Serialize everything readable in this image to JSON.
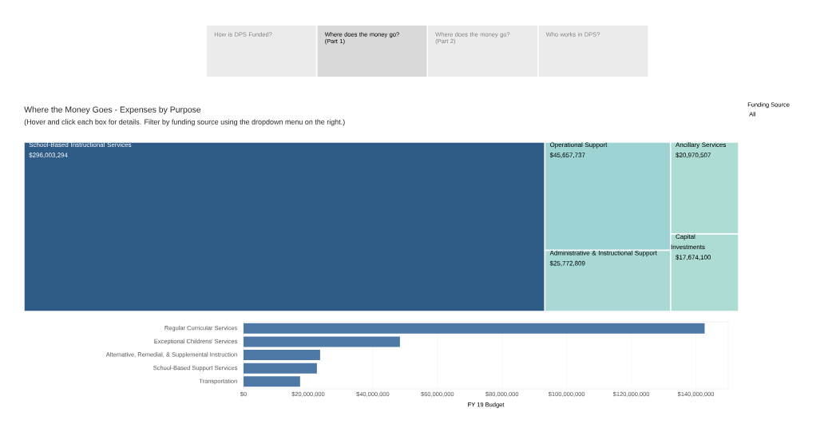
{
  "chart_data": [
    {
      "type": "other",
      "title": "Where the Money Goes - Expenses by Purpose",
      "subtitle": "(Hover and click each box for details. Filter by funding source using the dropdown menu on the right.)",
      "categories": [
        "School-Based Instructional Services",
        "Operational Support",
        "Administrative & Instructional Support",
        "Ancillary Services",
        "Capital Investments"
      ],
      "values": [
        296003294,
        45657737,
        25772809,
        20970507,
        17674100
      ],
      "value_labels": [
        "$296,003,294",
        "$45,657,737",
        "$25,772,809",
        "$20,970,507",
        "$17,674,100"
      ],
      "colors": [
        "#2e5c87",
        "#9dd3d2",
        "#a8d9d4",
        "#addcd4",
        "#addcd4"
      ],
      "annotations": [
        "How is DPS Funded?",
        "Where does the money go? (Part 1)",
        "Where does the money go? (Part 2)",
        "Who works in DPS?",
        "Funding Source",
        "All"
      ]
    },
    {
      "type": "bar",
      "orientation": "horizontal",
      "xlabel": "FY 19 Budget",
      "categories": [
        "Regular Curricular Services",
        "Exceptional Childrens' Services",
        "Alternative, Remedial, & Supplemental Instruction",
        "School-Based Support Services",
        "Transportation"
      ],
      "values": [
        142700000,
        48400000,
        23700000,
        22700000,
        17500000
      ],
      "color": "#4e79a7",
      "grid": "x",
      "xlim": [
        0,
        150000000
      ],
      "xticks": [
        {
          "value": 0,
          "label": "$0"
        },
        {
          "value": 20000000,
          "label": "$20,000,000"
        },
        {
          "value": 40000000,
          "label": "$40,000,000"
        },
        {
          "value": 60000000,
          "label": "$60,000,000"
        },
        {
          "value": 80000000,
          "label": "$80,000,000"
        },
        {
          "value": 100000000,
          "label": "$100,000,000"
        },
        {
          "value": 120000000,
          "label": "$120,000,000"
        },
        {
          "value": 140000000,
          "label": "$140,000,000"
        }
      ]
    }
  ]
}
